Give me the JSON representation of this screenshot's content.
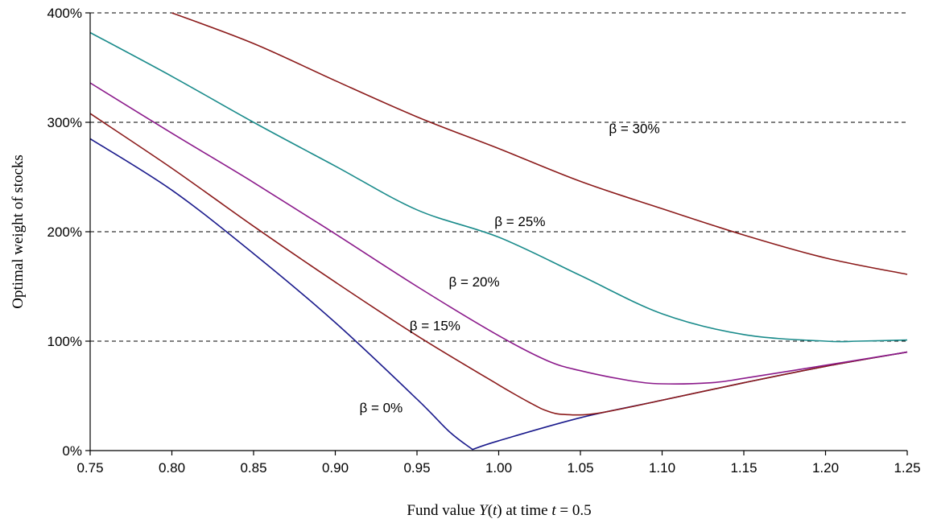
{
  "chart_data": {
    "type": "line",
    "xlabel_parts": [
      "Fund value ",
      "Y",
      "(",
      "t",
      ") at time ",
      "t",
      " = 0.5"
    ],
    "ylabel": "Optimal weight of stocks",
    "xlim": [
      0.75,
      1.25
    ],
    "ylim": [
      0,
      400
    ],
    "x_ticks": [
      "0.75",
      "0.80",
      "0.85",
      "0.90",
      "0.95",
      "1.00",
      "1.05",
      "1.10",
      "1.15",
      "1.20",
      "1.25"
    ],
    "y_ticks": [
      "0%",
      "100%",
      "200%",
      "300%",
      "400%"
    ],
    "grid": "horizontal dashed",
    "series": [
      {
        "name": "β = 0%",
        "color": "#1a1a8c",
        "x": [
          0.75,
          0.8,
          0.85,
          0.9,
          0.95,
          0.97,
          0.984,
          1.0,
          1.05,
          1.1,
          1.15,
          1.2,
          1.25
        ],
        "y": [
          285,
          238,
          180,
          117,
          47,
          17,
          1,
          9,
          30,
          46,
          62,
          77,
          90
        ]
      },
      {
        "name": "β = 15%",
        "color": "#8b1a1a",
        "x": [
          0.75,
          0.8,
          0.85,
          0.9,
          0.95,
          1.0,
          1.02,
          1.03,
          1.04,
          1.06,
          1.1,
          1.15,
          1.2,
          1.25
        ],
        "y": [
          308,
          258,
          205,
          154,
          105,
          60,
          43,
          36,
          33,
          34,
          46,
          62,
          77,
          90
        ]
      },
      {
        "name": "β = 20%",
        "color": "#8b1a8b",
        "x": [
          0.75,
          0.8,
          0.85,
          0.9,
          0.95,
          1.0,
          1.03,
          1.05,
          1.08,
          1.1,
          1.13,
          1.15,
          1.2,
          1.25
        ],
        "y": [
          336,
          290,
          245,
          198,
          150,
          105,
          82,
          73,
          64,
          61,
          62,
          66,
          78,
          90
        ]
      },
      {
        "name": "β = 25%",
        "color": "#1a8b8b",
        "x": [
          0.75,
          0.8,
          0.85,
          0.9,
          0.95,
          1.0,
          1.05,
          1.1,
          1.15,
          1.2,
          1.22,
          1.25
        ],
        "y": [
          382,
          342,
          300,
          260,
          220,
          195,
          160,
          125,
          106,
          100,
          100,
          101
        ]
      },
      {
        "name": "β = 30%",
        "color": "#8b1a1a",
        "x": [
          0.8,
          0.85,
          0.9,
          0.95,
          1.0,
          1.05,
          1.1,
          1.15,
          1.2,
          1.25
        ],
        "y": [
          400,
          372,
          338,
          305,
          276,
          246,
          221,
          197,
          176,
          161
        ]
      }
    ],
    "series_label_pos": [
      {
        "x": 0.928,
        "y": 35
      },
      {
        "x": 0.961,
        "y": 110
      },
      {
        "x": 0.985,
        "y": 150
      },
      {
        "x": 1.013,
        "y": 205
      },
      {
        "x": 1.083,
        "y": 290
      }
    ]
  }
}
